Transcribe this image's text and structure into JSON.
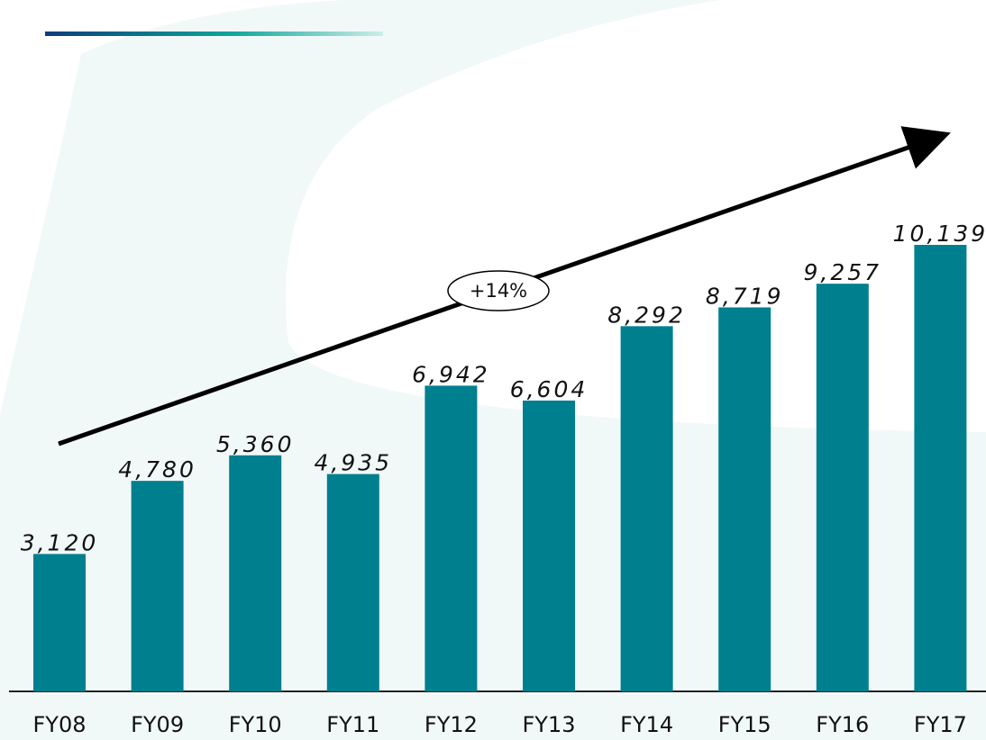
{
  "chart_data": {
    "type": "bar",
    "categories": [
      "FY08",
      "FY09",
      "FY10",
      "FY11",
      "FY12",
      "FY13",
      "FY14",
      "FY15",
      "FY16",
      "FY17"
    ],
    "values": [
      3120,
      4780,
      5360,
      4935,
      6942,
      6604,
      8292,
      8719,
      9257,
      10139
    ],
    "value_labels": [
      "3,120",
      "4,780",
      "5,360",
      "4,935",
      "6,942",
      "6,604",
      "8,292",
      "8,719",
      "9,257",
      "10,139"
    ],
    "color": "#007f8f",
    "annotation": "+14%"
  }
}
